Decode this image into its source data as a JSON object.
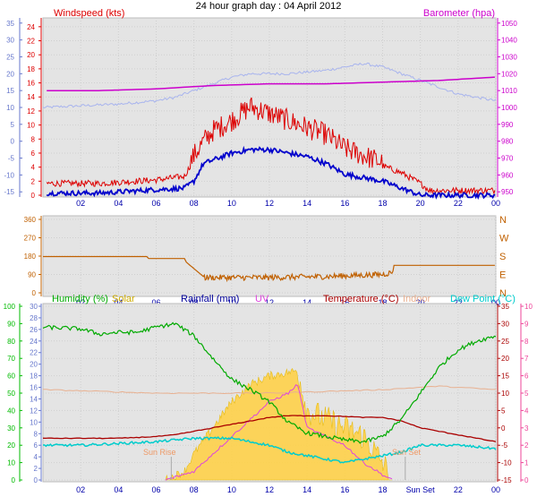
{
  "title": "24 hour graph day : 04 April 2012",
  "x_ticks": [
    "02",
    "04",
    "06",
    "08",
    "10",
    "12",
    "14",
    "16",
    "18",
    "20",
    "22",
    "00"
  ],
  "x_ticks_bottom": [
    "02",
    "04",
    "06",
    "08",
    "10",
    "12",
    "14",
    "16",
    "18",
    "Sun Set",
    "22",
    "00"
  ],
  "colors": {
    "wind": "#dd0000",
    "wind_avg": "#0000cc",
    "wind_dir": "#c06000",
    "barometer": "#cc00cc",
    "pressure_faint": "#a8b4ee",
    "humidity": "#00aa00",
    "solar": "#ccaa00",
    "rainfall": "#000099",
    "uv": "#dd44dd",
    "temperature": "#aa0000",
    "indoor": "#e8b090",
    "dew_point": "#00cccc",
    "plot_fill": "#e4e4e4",
    "axis_blue": "#6677cc",
    "axis_green": "#00bb00",
    "axis_pink": "#ee4499",
    "solar_fill": "#ffd24a"
  },
  "chart_data": [
    {
      "type": "line",
      "id": "wind_panel",
      "labels": {
        "left": "Windspeed (kts)",
        "right": "Barometer (hpa)"
      },
      "y_left": {
        "ticks": [
          0,
          2,
          4,
          6,
          8,
          10,
          12,
          14,
          16,
          18,
          20,
          22,
          24
        ],
        "range": [
          0,
          25
        ]
      },
      "y_left_outer": {
        "ticks": [
          -15,
          -10,
          -5,
          0,
          5,
          10,
          15,
          20,
          25,
          30,
          35
        ],
        "range": [
          -16,
          36
        ]
      },
      "y_right": {
        "ticks": [
          950,
          960,
          970,
          980,
          990,
          1000,
          1010,
          1020,
          1030,
          1040,
          1050
        ],
        "range": [
          948,
          1052
        ]
      },
      "x_range_hours": [
        0,
        24
      ],
      "series": [
        {
          "name": "Windspeed (kts)",
          "axis": "left",
          "points": [
            [
              0,
              1.5
            ],
            [
              3,
              1.5
            ],
            [
              6,
              2
            ],
            [
              7.5,
              2.5
            ],
            [
              8,
              5
            ],
            [
              8.5,
              7
            ],
            [
              9,
              8.5
            ],
            [
              10,
              10
            ],
            [
              11,
              12
            ],
            [
              12,
              11
            ],
            [
              13,
              10
            ],
            [
              14,
              9
            ],
            [
              15,
              8
            ],
            [
              16,
              6
            ],
            [
              17,
              5
            ],
            [
              18,
              4
            ],
            [
              19,
              3
            ],
            [
              20,
              1.5
            ],
            [
              20.5,
              0.5
            ],
            [
              24,
              0.5
            ]
          ]
        },
        {
          "name": "Wind avg",
          "axis": "left",
          "points": [
            [
              0,
              0.3
            ],
            [
              3,
              0.3
            ],
            [
              6,
              0.8
            ],
            [
              7.5,
              1
            ],
            [
              8,
              2
            ],
            [
              8.5,
              4.5
            ],
            [
              9,
              5
            ],
            [
              10,
              6
            ],
            [
              11,
              6.5
            ],
            [
              12,
              6.5
            ],
            [
              13,
              6
            ],
            [
              14,
              5.5
            ],
            [
              15,
              4.5
            ],
            [
              16,
              3
            ],
            [
              17,
              2.5
            ],
            [
              18,
              2
            ],
            [
              19,
              1
            ],
            [
              20,
              0
            ],
            [
              24,
              0
            ]
          ]
        },
        {
          "name": "Barometer (hpa)",
          "axis": "right",
          "points": [
            [
              0,
              1010
            ],
            [
              3,
              1010
            ],
            [
              6,
              1011
            ],
            [
              9,
              1013
            ],
            [
              12,
              1014
            ],
            [
              15,
              1014
            ],
            [
              18,
              1015
            ],
            [
              21,
              1016
            ],
            [
              24,
              1018
            ]
          ]
        },
        {
          "name": "Pressure trace",
          "axis": "left_outer",
          "points": [
            [
              0,
              10
            ],
            [
              2,
              10.5
            ],
            [
              4,
              11
            ],
            [
              6,
              12
            ],
            [
              7,
              13
            ],
            [
              8,
              15
            ],
            [
              9,
              17
            ],
            [
              10,
              19
            ],
            [
              11,
              20
            ],
            [
              12,
              20
            ],
            [
              13,
              20
            ],
            [
              14,
              20.5
            ],
            [
              15,
              21
            ],
            [
              16,
              22
            ],
            [
              17,
              23
            ],
            [
              18,
              22
            ],
            [
              19,
              20
            ],
            [
              20,
              18
            ],
            [
              21,
              16
            ],
            [
              22,
              14
            ],
            [
              24,
              12
            ]
          ]
        }
      ]
    },
    {
      "type": "line",
      "id": "direction_panel",
      "y_left": {
        "ticks": [
          0,
          90,
          180,
          270,
          360
        ],
        "range": [
          0,
          360
        ]
      },
      "y_right_labels": [
        "N",
        "W",
        "S",
        "E",
        "N"
      ],
      "x_range_hours": [
        0,
        24
      ],
      "series": [
        {
          "name": "Wind direction",
          "points": [
            [
              0,
              178
            ],
            [
              3,
              178
            ],
            [
              5.5,
              178
            ],
            [
              5.6,
              168
            ],
            [
              7.5,
              168
            ],
            [
              7.6,
              150
            ],
            [
              8.5,
              80
            ],
            [
              8.6,
              75
            ],
            [
              9,
              75
            ],
            [
              12,
              75
            ],
            [
              15,
              80
            ],
            [
              18,
              90
            ],
            [
              18.5,
              100
            ],
            [
              18.6,
              135
            ],
            [
              21,
              135
            ],
            [
              24,
              135
            ]
          ]
        }
      ]
    },
    {
      "type": "line",
      "id": "multi_panel",
      "labels": [
        "Humidity (%)",
        "Solar",
        "Rainfall (mm)",
        "UV",
        "Temperature (°C)",
        "Indoor",
        "Dew Point (°C)"
      ],
      "y_left_humidity": {
        "ticks": [
          0,
          10,
          20,
          30,
          40,
          50,
          60,
          70,
          80,
          90,
          100
        ],
        "range": [
          0,
          100
        ]
      },
      "y_left_rain": {
        "ticks": [
          0,
          2,
          4,
          6,
          8,
          10,
          12,
          14,
          16,
          18,
          20,
          22,
          24,
          26,
          28,
          30
        ],
        "range": [
          0,
          30
        ]
      },
      "y_right_temp": {
        "ticks": [
          -15,
          -10,
          -5,
          0,
          5,
          10,
          15,
          20,
          25,
          30,
          35
        ],
        "range": [
          -15,
          35
        ]
      },
      "y_right_uv": {
        "ticks": [
          0,
          1,
          2,
          3,
          4,
          5,
          6,
          7,
          8,
          9,
          10
        ],
        "range": [
          0,
          10
        ]
      },
      "x_range_hours": [
        0,
        24
      ],
      "annotations": [
        "Sun Rise",
        "Sun Set"
      ],
      "series": [
        {
          "name": "Humidity (%)",
          "axis": "humidity",
          "points": [
            [
              0,
              88
            ],
            [
              2,
              87
            ],
            [
              3,
              84
            ],
            [
              4,
              85
            ],
            [
              5,
              85
            ],
            [
              6,
              88
            ],
            [
              7,
              90
            ],
            [
              8,
              83
            ],
            [
              9,
              70
            ],
            [
              10,
              58
            ],
            [
              11,
              52
            ],
            [
              12,
              45
            ],
            [
              13,
              33
            ],
            [
              14,
              27
            ],
            [
              15,
              25
            ],
            [
              16,
              23
            ],
            [
              17,
              22
            ],
            [
              18,
              25
            ],
            [
              19,
              35
            ],
            [
              20,
              50
            ],
            [
              21,
              65
            ],
            [
              22,
              75
            ],
            [
              23,
              80
            ],
            [
              24,
              83
            ]
          ]
        },
        {
          "name": "Temperature (°C)",
          "axis": "temp",
          "points": [
            [
              0,
              -3
            ],
            [
              2,
              -3
            ],
            [
              4,
              -3
            ],
            [
              6,
              -2.5
            ],
            [
              7,
              -2
            ],
            [
              8,
              -1
            ],
            [
              9,
              0
            ],
            [
              10,
              1
            ],
            [
              11,
              2
            ],
            [
              12,
              3
            ],
            [
              13,
              3.5
            ],
            [
              14,
              3.5
            ],
            [
              15,
              3.5
            ],
            [
              16,
              3.3
            ],
            [
              17,
              3
            ],
            [
              18,
              3
            ],
            [
              19,
              2
            ],
            [
              20,
              0
            ],
            [
              21,
              -1
            ],
            [
              22,
              -2
            ],
            [
              23,
              -3
            ],
            [
              24,
              -4
            ]
          ]
        },
        {
          "name": "Dew Point (°C)",
          "axis": "temp",
          "points": [
            [
              0,
              -5
            ],
            [
              2,
              -5
            ],
            [
              4,
              -4.5
            ],
            [
              6,
              -4
            ],
            [
              8,
              -3
            ],
            [
              10,
              -3
            ],
            [
              12,
              -5
            ],
            [
              13,
              -7
            ],
            [
              14,
              -8
            ],
            [
              15,
              -9
            ],
            [
              16,
              -10
            ],
            [
              17,
              -9
            ],
            [
              18,
              -8
            ],
            [
              19,
              -7
            ],
            [
              20,
              -5
            ],
            [
              22,
              -5
            ],
            [
              24,
              -6
            ]
          ]
        },
        {
          "name": "Indoor",
          "axis": "temp",
          "points": [
            [
              0,
              11
            ],
            [
              3,
              10.5
            ],
            [
              6,
              10
            ],
            [
              9,
              10
            ],
            [
              12,
              10
            ],
            [
              15,
              10.5
            ],
            [
              18,
              11
            ],
            [
              21,
              12
            ],
            [
              24,
              11
            ]
          ]
        },
        {
          "name": "UV",
          "axis": "uv",
          "points": [
            [
              6.5,
              0
            ],
            [
              8,
              0.5
            ],
            [
              9,
              1.5
            ],
            [
              10,
              2.5
            ],
            [
              11,
              3.5
            ],
            [
              12,
              4.5
            ],
            [
              13,
              5
            ],
            [
              13.5,
              5.5
            ],
            [
              14,
              3
            ],
            [
              15,
              2.5
            ],
            [
              16,
              2
            ],
            [
              17,
              1
            ],
            [
              18,
              0.3
            ],
            [
              18.5,
              0
            ]
          ]
        },
        {
          "name": "Solar",
          "axis": "uv",
          "points": [
            [
              6.5,
              0
            ],
            [
              7.5,
              0.5
            ],
            [
              8,
              1.5
            ],
            [
              9,
              3
            ],
            [
              10,
              4.5
            ],
            [
              11,
              5.5
            ],
            [
              12,
              6
            ],
            [
              13,
              6.2
            ],
            [
              13.5,
              6.3
            ],
            [
              14,
              4
            ],
            [
              15,
              3.5
            ],
            [
              16,
              3
            ],
            [
              17,
              2.5
            ],
            [
              18,
              1
            ],
            [
              18.5,
              0
            ]
          ]
        }
      ]
    }
  ]
}
